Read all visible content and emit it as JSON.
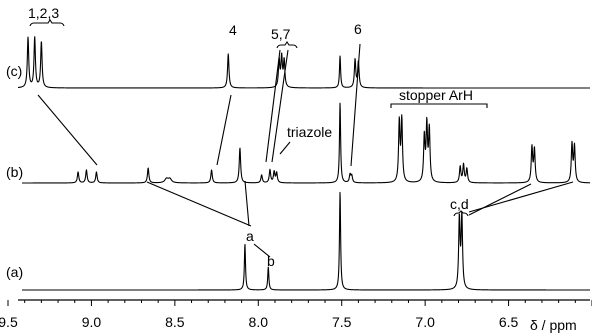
{
  "chart_data": {
    "type": "line",
    "xlabel": "δ / ppm",
    "xlim": [
      9.5,
      6.0
    ],
    "x_reversed": true,
    "x_ticks": [
      "9.5",
      "9.0",
      "8.5",
      "8.0",
      "7.5",
      "7.0",
      "6.5"
    ],
    "grid": false,
    "series": [
      {
        "name": "(c)",
        "peaks": [
          {
            "ppm": 9.38,
            "h": 50,
            "w": 0.005
          },
          {
            "ppm": 9.34,
            "h": 50,
            "w": 0.005
          },
          {
            "ppm": 9.3,
            "h": 46,
            "w": 0.005
          },
          {
            "ppm": 8.18,
            "h": 34,
            "w": 0.005
          },
          {
            "ppm": 7.875,
            "h": 27,
            "w": 0.005
          },
          {
            "ppm": 7.86,
            "h": 30,
            "w": 0.005
          },
          {
            "ppm": 7.845,
            "h": 27,
            "w": 0.005
          },
          {
            "ppm": 7.51,
            "h": 32,
            "w": 0.004
          },
          {
            "ppm": 7.42,
            "h": 28,
            "w": 0.005
          },
          {
            "ppm": 7.4,
            "h": 26,
            "w": 0.005
          }
        ]
      },
      {
        "name": "(b)",
        "peaks": [
          {
            "ppm": 9.08,
            "h": 11,
            "w": 0.005
          },
          {
            "ppm": 9.03,
            "h": 13,
            "w": 0.005
          },
          {
            "ppm": 8.97,
            "h": 11,
            "w": 0.005
          },
          {
            "ppm": 8.66,
            "h": 15,
            "w": 0.005
          },
          {
            "ppm": 8.55,
            "h": 4,
            "w": 0.012
          },
          {
            "ppm": 8.53,
            "h": 4,
            "w": 0.012
          },
          {
            "ppm": 8.28,
            "h": 13,
            "w": 0.005
          },
          {
            "ppm": 8.11,
            "h": 35,
            "w": 0.005
          },
          {
            "ppm": 7.98,
            "h": 8,
            "w": 0.005
          },
          {
            "ppm": 7.93,
            "h": 13,
            "w": 0.005
          },
          {
            "ppm": 7.905,
            "h": 11,
            "w": 0.005
          },
          {
            "ppm": 7.89,
            "h": 10,
            "w": 0.005
          },
          {
            "ppm": 7.51,
            "h": 80,
            "w": 0.004
          },
          {
            "ppm": 7.45,
            "h": 8,
            "w": 0.005
          },
          {
            "ppm": 7.44,
            "h": 7,
            "w": 0.005
          },
          {
            "ppm": 7.155,
            "h": 60,
            "w": 0.005
          },
          {
            "ppm": 7.14,
            "h": 62,
            "w": 0.005
          },
          {
            "ppm": 7.005,
            "h": 45,
            "w": 0.005
          },
          {
            "ppm": 6.99,
            "h": 56,
            "w": 0.005
          },
          {
            "ppm": 6.975,
            "h": 52,
            "w": 0.005
          },
          {
            "ppm": 6.79,
            "h": 16,
            "w": 0.005
          },
          {
            "ppm": 6.77,
            "h": 18,
            "w": 0.005
          },
          {
            "ppm": 6.75,
            "h": 14,
            "w": 0.005
          },
          {
            "ppm": 6.36,
            "h": 35,
            "w": 0.005
          },
          {
            "ppm": 6.345,
            "h": 33,
            "w": 0.005
          },
          {
            "ppm": 6.12,
            "h": 38,
            "w": 0.005
          },
          {
            "ppm": 6.105,
            "h": 36,
            "w": 0.005
          }
        ]
      },
      {
        "name": "(a)",
        "peaks": [
          {
            "ppm": 8.08,
            "h": 46,
            "w": 0.004
          },
          {
            "ppm": 7.94,
            "h": 23,
            "w": 0.004
          },
          {
            "ppm": 7.51,
            "h": 98,
            "w": 0.004
          },
          {
            "ppm": 6.795,
            "h": 70,
            "w": 0.005
          },
          {
            "ppm": 6.78,
            "h": 72,
            "w": 0.005
          }
        ]
      }
    ],
    "annotations": [
      {
        "text": "1,2,3"
      },
      {
        "text": "4"
      },
      {
        "text": "5,7"
      },
      {
        "text": "6"
      },
      {
        "text": "stopper ArH"
      },
      {
        "text": "triazole"
      },
      {
        "text": "a"
      },
      {
        "text": "b"
      },
      {
        "text": "c,d"
      }
    ]
  }
}
